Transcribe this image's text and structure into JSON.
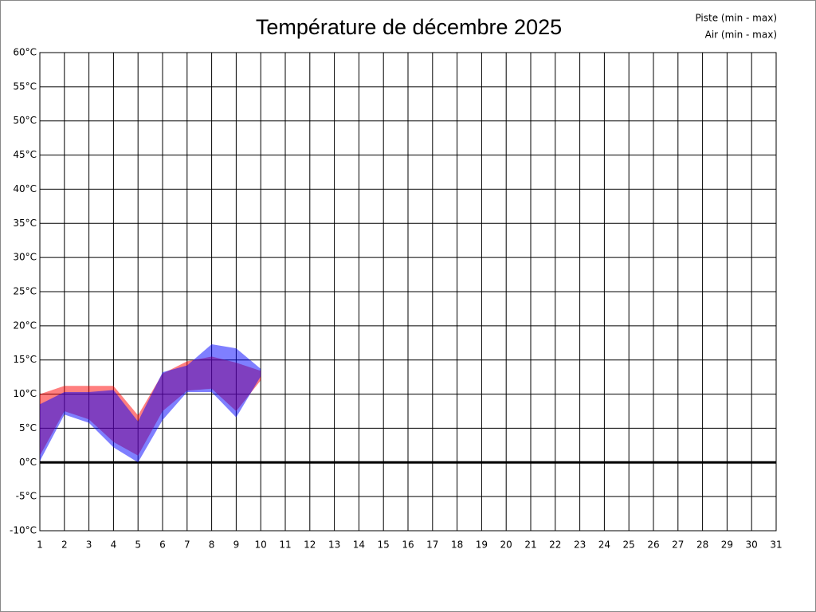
{
  "chart_data": {
    "type": "range-area",
    "title": "Température de décembre 2025",
    "x": [
      1,
      2,
      3,
      4,
      5,
      6,
      7,
      8,
      9,
      10
    ],
    "series": [
      {
        "name": "Piste (min - max)",
        "color": "#ff0000",
        "low": [
          1,
          7.5,
          6.3,
          3,
          1,
          7.5,
          10.5,
          10.8,
          7.5,
          12
        ],
        "high": [
          10,
          11.2,
          11.2,
          11.2,
          6.9,
          13,
          14.8,
          15.5,
          14.6,
          13.4
        ]
      },
      {
        "name": "Air (min - max)",
        "color": "#0000ff",
        "low": [
          0.2,
          7,
          5.8,
          2.2,
          0,
          6.2,
          10.3,
          10.3,
          6.6,
          12.6
        ],
        "high": [
          8.5,
          10.3,
          10.3,
          10.6,
          6,
          13.2,
          14.2,
          17.3,
          16.7,
          13.7
        ]
      }
    ],
    "xlim": [
      1,
      31
    ],
    "xticks": [
      1,
      2,
      3,
      4,
      5,
      6,
      7,
      8,
      9,
      10,
      11,
      12,
      13,
      14,
      15,
      16,
      17,
      18,
      19,
      20,
      21,
      22,
      23,
      24,
      25,
      26,
      27,
      28,
      29,
      30,
      31
    ],
    "ylim": [
      -10,
      60
    ],
    "yticks": [
      {
        "value": -10,
        "label": "-10°C"
      },
      {
        "value": -5,
        "label": "-5°C"
      },
      {
        "value": 0,
        "label": "0°C"
      },
      {
        "value": 5,
        "label": "5°C"
      },
      {
        "value": 10,
        "label": "10°C"
      },
      {
        "value": 15,
        "label": "15°C"
      },
      {
        "value": 20,
        "label": "20°C"
      },
      {
        "value": 25,
        "label": "25°C"
      },
      {
        "value": 30,
        "label": "30°C"
      },
      {
        "value": 35,
        "label": "35°C"
      },
      {
        "value": 40,
        "label": "40°C"
      },
      {
        "value": 45,
        "label": "45°C"
      },
      {
        "value": 50,
        "label": "50°C"
      },
      {
        "value": 55,
        "label": "55°C"
      },
      {
        "value": 60,
        "label": "60°C"
      }
    ],
    "grid": true,
    "legend": "top-right"
  }
}
